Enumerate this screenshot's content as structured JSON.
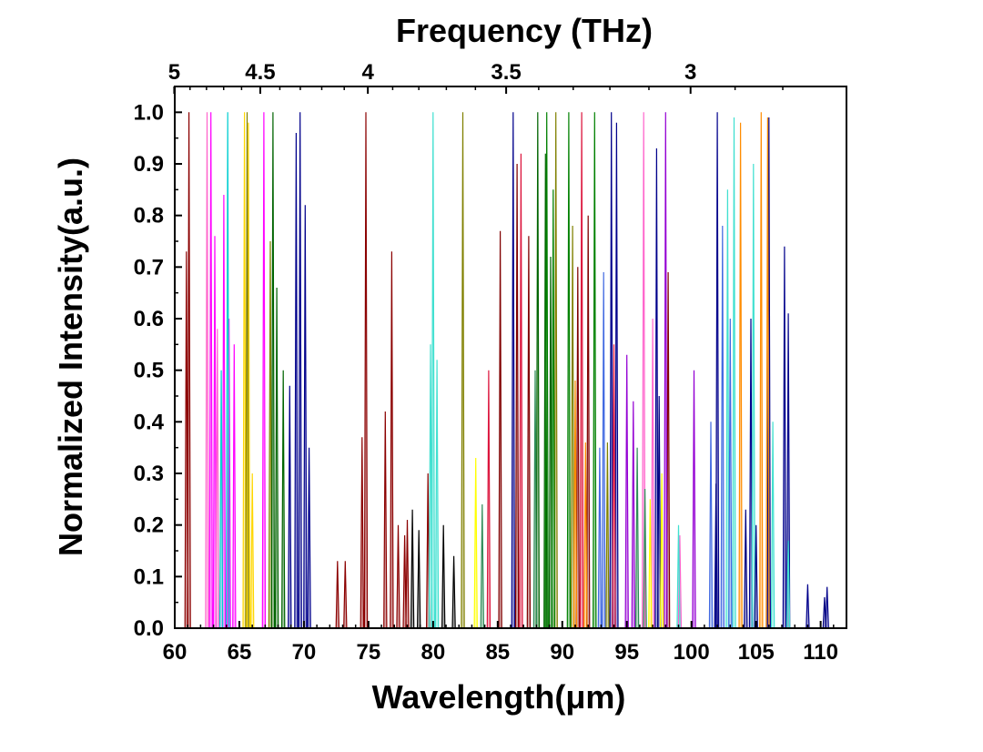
{
  "chart_data": {
    "type": "line",
    "title": "",
    "xlabel": "Wavelength(μm)",
    "ylabel": "Normalized Intensity(a.u.)",
    "top_axis_label": "Frequency (THz)",
    "xlim": [
      60,
      112
    ],
    "ylim": [
      0,
      1.05
    ],
    "grid": false,
    "legend": "none",
    "x_ticks": [
      60,
      65,
      70,
      75,
      80,
      85,
      90,
      95,
      100,
      105,
      110
    ],
    "x_tick_labels": [
      "60",
      "65",
      "70",
      "75",
      "80",
      "85",
      "90",
      "95",
      "100",
      "105",
      "110"
    ],
    "y_ticks": [
      0.0,
      0.1,
      0.2,
      0.3,
      0.4,
      0.5,
      0.6,
      0.7,
      0.8,
      0.9,
      1.0
    ],
    "y_tick_labels": [
      "0.0",
      "0.1",
      "0.2",
      "0.3",
      "0.4",
      "0.5",
      "0.6",
      "0.7",
      "0.8",
      "0.9",
      "1.0"
    ],
    "top_ticks_thz": [
      5,
      4.5,
      4,
      3.5,
      3
    ],
    "top_tick_labels": [
      "5",
      "4.5",
      "4",
      "3.5",
      "3"
    ],
    "series": [
      {
        "color": "#8b0000",
        "peaks": [
          [
            61.1,
            1.0
          ],
          [
            60.9,
            0.73
          ],
          [
            74.8,
            1.0
          ],
          [
            74.5,
            0.37
          ],
          [
            72.6,
            0.13
          ],
          [
            73.2,
            0.13
          ],
          [
            76.3,
            0.42
          ],
          [
            76.8,
            0.73
          ],
          [
            77.3,
            0.2
          ],
          [
            77.8,
            0.18
          ],
          [
            78.0,
            0.21
          ],
          [
            79.6,
            0.3
          ]
        ]
      },
      {
        "color": "#ff00ff",
        "peaks": [
          [
            62.8,
            1.0
          ],
          [
            63.1,
            0.76
          ],
          [
            63.8,
            0.84
          ],
          [
            64.2,
            0.6
          ],
          [
            64.6,
            0.55
          ],
          [
            66.9,
            1.0
          ]
        ]
      },
      {
        "color": "#ff66cc",
        "peaks": [
          [
            62.5,
            1.0
          ],
          [
            63.3,
            0.58
          ],
          [
            96.3,
            1.0
          ],
          [
            97.0,
            0.6
          ],
          [
            99.1,
            0.18
          ]
        ]
      },
      {
        "color": "#00ced1",
        "peaks": [
          [
            64.1,
            1.0
          ],
          [
            63.6,
            0.5
          ]
        ]
      },
      {
        "color": "#ffd700",
        "peaks": [
          [
            65.4,
            1.0
          ],
          [
            65.7,
            0.98
          ],
          [
            66.0,
            0.3
          ]
        ]
      },
      {
        "color": "#808000",
        "peaks": [
          [
            65.6,
            1.0
          ],
          [
            67.4,
            0.75
          ],
          [
            82.3,
            1.0
          ],
          [
            89.5,
            1.0
          ],
          [
            90.8,
            0.78
          ],
          [
            93.5,
            0.36
          ]
        ]
      },
      {
        "color": "#006400",
        "peaks": [
          [
            67.6,
            1.0
          ],
          [
            67.9,
            0.66
          ],
          [
            68.4,
            0.5
          ],
          [
            88.1,
            1.0
          ],
          [
            88.7,
            0.92
          ],
          [
            89.1,
            0.72
          ]
        ]
      },
      {
        "color": "#00008b",
        "peaks": [
          [
            69.7,
            1.0
          ],
          [
            69.4,
            0.96
          ],
          [
            68.9,
            0.47
          ],
          [
            70.1,
            0.82
          ],
          [
            70.4,
            0.35
          ],
          [
            86.2,
            1.0
          ],
          [
            93.8,
            1.0
          ],
          [
            94.2,
            0.98
          ],
          [
            97.3,
            0.93
          ],
          [
            102.0,
            1.0
          ],
          [
            104.6,
            0.6
          ],
          [
            106.0,
            0.99
          ],
          [
            107.2,
            0.74
          ],
          [
            107.5,
            0.61
          ],
          [
            109.0,
            0.085
          ],
          [
            110.5,
            0.08
          ]
        ]
      },
      {
        "color": "#800000",
        "peaks": [
          [
            85.2,
            0.77
          ],
          [
            86.5,
            0.9
          ],
          [
            87.4,
            0.76
          ],
          [
            91.2,
            0.7
          ],
          [
            92.0,
            0.8
          ],
          [
            98.2,
            0.69
          ]
        ]
      },
      {
        "color": "#40e0d0",
        "peaks": [
          [
            80.0,
            1.0
          ],
          [
            79.8,
            0.55
          ],
          [
            80.3,
            0.52
          ],
          [
            99.0,
            0.2
          ],
          [
            102.8,
            0.85
          ],
          [
            103.3,
            0.99
          ],
          [
            104.8,
            0.9
          ],
          [
            106.3,
            0.4
          ],
          [
            107.5,
            0.17
          ]
        ]
      },
      {
        "color": "#008000",
        "peaks": [
          [
            88.8,
            1.0
          ],
          [
            89.3,
            0.85
          ],
          [
            90.5,
            1.0
          ],
          [
            92.5,
            1.0
          ]
        ]
      },
      {
        "color": "#dc143c",
        "peaks": [
          [
            84.3,
            0.5
          ],
          [
            86.8,
            0.92
          ],
          [
            91.5,
            1.0
          ],
          [
            94.0,
            0.55
          ]
        ]
      },
      {
        "color": "#ff8c00",
        "peaks": [
          [
            91.0,
            0.48
          ],
          [
            91.8,
            0.36
          ],
          [
            103.8,
            0.98
          ],
          [
            105.4,
            1.0
          ],
          [
            105.9,
            0.99
          ]
        ]
      },
      {
        "color": "#4169e1",
        "peaks": [
          [
            92.9,
            0.35
          ],
          [
            93.2,
            0.69
          ],
          [
            101.5,
            0.4
          ],
          [
            102.4,
            0.78
          ],
          [
            103.0,
            0.6
          ]
        ]
      },
      {
        "color": "#9400d3",
        "peaks": [
          [
            95.0,
            0.53
          ],
          [
            95.5,
            0.44
          ],
          [
            98.0,
            1.0
          ],
          [
            100.2,
            0.5
          ]
        ]
      },
      {
        "color": "#000080",
        "peaks": [
          [
            97.5,
            0.45
          ],
          [
            101.9,
            0.28
          ],
          [
            104.2,
            0.23
          ],
          [
            105.0,
            0.2
          ],
          [
            110.3,
            0.06
          ]
        ]
      },
      {
        "color": "#2e8b57",
        "peaks": [
          [
            83.8,
            0.24
          ],
          [
            87.9,
            0.5
          ],
          [
            95.8,
            0.35
          ],
          [
            96.4,
            0.27
          ]
        ]
      },
      {
        "color": "#ffff00",
        "peaks": [
          [
            83.3,
            0.33
          ],
          [
            96.8,
            0.25
          ],
          [
            97.7,
            0.3
          ]
        ]
      },
      {
        "color": "#000000",
        "peaks": [
          [
            78.4,
            0.23
          ],
          [
            78.9,
            0.19
          ],
          [
            80.8,
            0.2
          ],
          [
            81.6,
            0.14
          ]
        ]
      }
    ]
  }
}
